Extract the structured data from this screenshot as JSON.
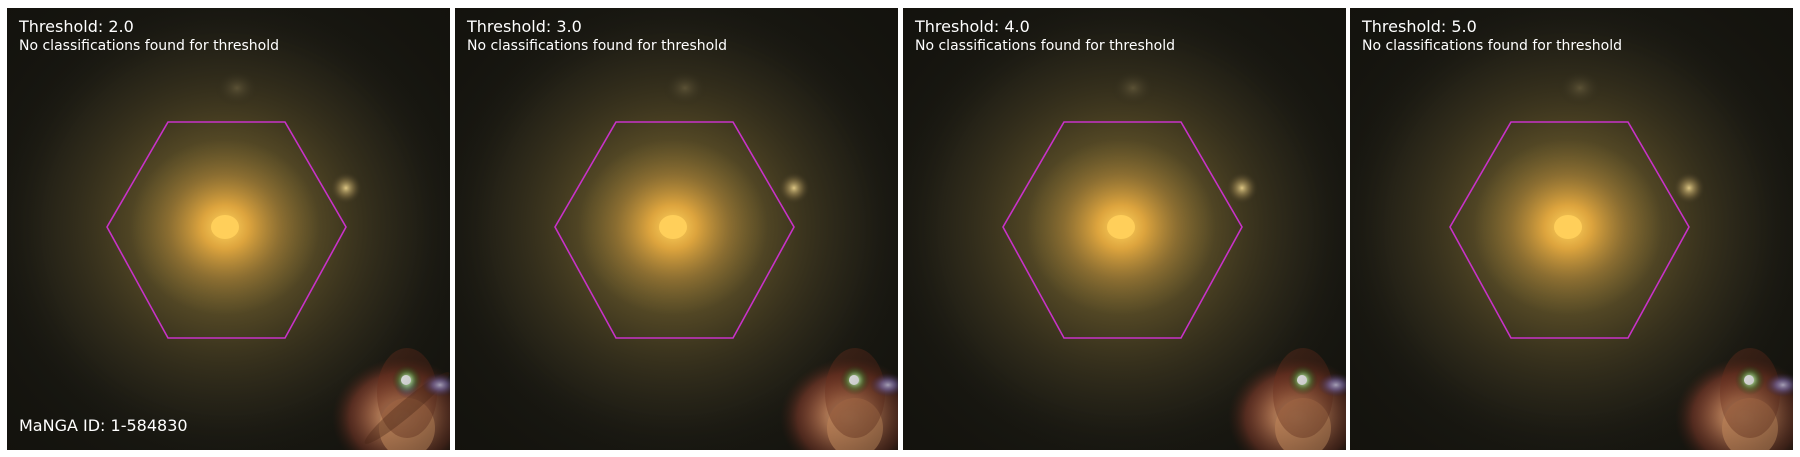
{
  "figure": {
    "panels": [
      {
        "title": "Threshold: 2.0",
        "subtitle": "No classifications found for threshold",
        "id_label": "MaNGA ID: 1-584830"
      },
      {
        "title": "Threshold: 3.0",
        "subtitle": "No classifications found for threshold"
      },
      {
        "title": "Threshold: 4.0",
        "subtitle": "No classifications found for threshold"
      },
      {
        "title": "Threshold: 5.0",
        "subtitle": "No classifications found for threshold"
      }
    ],
    "colors": {
      "hexagon_outline": "#c832c8",
      "galaxy_core": "#ffcf5a",
      "background_sky": "#1b1a13",
      "text": "#ffffff"
    }
  }
}
